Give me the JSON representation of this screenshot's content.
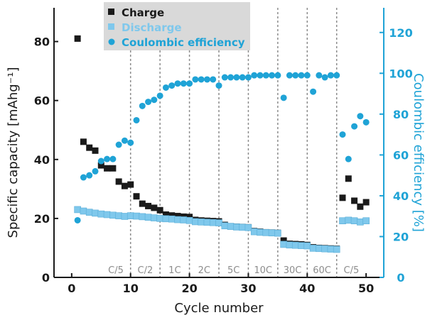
{
  "colors": {
    "charge": "#1a1a1a",
    "discharge": "#7fc8ec",
    "efficiency": "#1fa3d6",
    "legend_bg": "#d9d9d9",
    "divider": "#8c8c8c"
  },
  "chart_data": {
    "type": "scatter",
    "xlabel": "Cycle number",
    "ylabel": "Specific capacity [mAhg⁻¹]",
    "y2label": "Coulombic efficiency [%]",
    "xlim": [
      -3,
      53
    ],
    "ylim": [
      0,
      90
    ],
    "y2lim": [
      0,
      130
    ],
    "xticks": [
      0,
      10,
      20,
      30,
      40,
      50
    ],
    "yticks": [
      0,
      20,
      40,
      60,
      80
    ],
    "y2ticks": [
      0,
      20,
      40,
      60,
      80,
      100,
      120
    ],
    "legend_position": "top-left",
    "rate_dividers": [
      10,
      15,
      20,
      25,
      30,
      35,
      40,
      45
    ],
    "rate_labels": [
      {
        "text": "C/5",
        "x": 7.5
      },
      {
        "text": "C/2",
        "x": 12.5
      },
      {
        "text": "1C",
        "x": 17.5
      },
      {
        "text": "2C",
        "x": 22.5
      },
      {
        "text": "5C",
        "x": 27.5
      },
      {
        "text": "10C",
        "x": 32.5
      },
      {
        "text": "30C",
        "x": 37.5
      },
      {
        "text": "60C",
        "x": 42.5
      },
      {
        "text": "C/5",
        "x": 47.5
      }
    ],
    "series": [
      {
        "name": "Charge",
        "axis": "left",
        "marker": "square",
        "x": [
          1,
          2,
          3,
          4,
          5,
          6,
          7,
          8,
          9,
          10,
          11,
          12,
          13,
          14,
          15,
          16,
          17,
          18,
          19,
          20,
          21,
          22,
          23,
          24,
          25,
          26,
          27,
          28,
          29,
          30,
          31,
          32,
          33,
          34,
          35,
          36,
          37,
          38,
          39,
          40,
          41,
          42,
          43,
          44,
          45,
          46,
          47,
          48,
          49,
          50
        ],
        "y": [
          81,
          46,
          44,
          43,
          38,
          37,
          37,
          32.5,
          31,
          31.5,
          27.5,
          25,
          24.2,
          23.6,
          22.8,
          21.3,
          21,
          20.8,
          20.6,
          20.5,
          19.5,
          19.3,
          19.2,
          19.1,
          19,
          17.8,
          17.3,
          17.2,
          17.1,
          17,
          15.7,
          15.5,
          15.3,
          15.2,
          15.1,
          12.5,
          11.4,
          11.3,
          11.2,
          11,
          10.2,
          10,
          9.9,
          9.8,
          9.7,
          27,
          33.5,
          26,
          24,
          25.5
        ]
      },
      {
        "name": "Discharge",
        "axis": "left",
        "marker": "square",
        "x": [
          1,
          2,
          3,
          4,
          5,
          6,
          7,
          8,
          9,
          10,
          11,
          12,
          13,
          14,
          15,
          16,
          17,
          18,
          19,
          20,
          21,
          22,
          23,
          24,
          25,
          26,
          27,
          28,
          29,
          30,
          31,
          32,
          33,
          34,
          35,
          36,
          37,
          38,
          39,
          40,
          41,
          42,
          43,
          44,
          45,
          46,
          47,
          48,
          49,
          50
        ],
        "y": [
          23,
          22.5,
          22.1,
          21.8,
          21.5,
          21.3,
          21.1,
          20.9,
          20.7,
          20.9,
          20.8,
          20.6,
          20.4,
          20.2,
          20,
          19.9,
          19.8,
          19.6,
          19.5,
          19.3,
          18.9,
          18.8,
          18.7,
          18.6,
          18.5,
          17.5,
          17.3,
          17.1,
          17,
          16.9,
          15.5,
          15.3,
          15.2,
          15.1,
          15,
          11.2,
          11,
          10.9,
          10.8,
          10.7,
          9.9,
          9.8,
          9.7,
          9.6,
          9.5,
          19.2,
          19.4,
          19.2,
          18.8,
          19.2
        ]
      },
      {
        "name": "Coulombic efficiency",
        "axis": "right",
        "marker": "circle",
        "x": [
          1,
          2,
          3,
          4,
          5,
          6,
          7,
          8,
          9,
          10,
          11,
          12,
          13,
          14,
          15,
          16,
          17,
          18,
          19,
          20,
          21,
          22,
          23,
          24,
          25,
          26,
          27,
          28,
          29,
          30,
          31,
          32,
          33,
          34,
          35,
          36,
          37,
          38,
          39,
          40,
          41,
          42,
          43,
          44,
          45,
          46,
          47,
          48,
          49,
          50
        ],
        "y": [
          28,
          49,
          50,
          52,
          57,
          58,
          58,
          65,
          67,
          66,
          77,
          84,
          86,
          87,
          89,
          93,
          94,
          95,
          95,
          95,
          97,
          97,
          97,
          97,
          94,
          98,
          98,
          98,
          98,
          98,
          99,
          99,
          99,
          99,
          99,
          88,
          99,
          99,
          99,
          99,
          91,
          99,
          98,
          99,
          99,
          70,
          58,
          74,
          79,
          76
        ]
      }
    ]
  }
}
